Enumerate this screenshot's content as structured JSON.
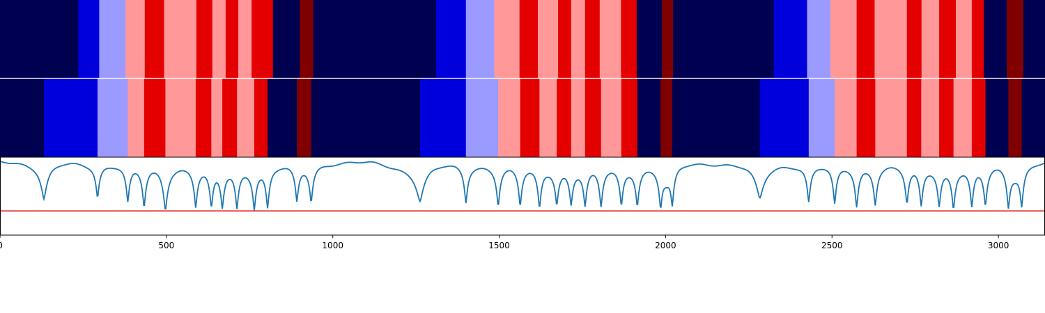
{
  "chart_data": {
    "type": "heatmap",
    "title": "",
    "xlabel": "",
    "ylabel": "",
    "xlim": [
      0,
      3140
    ],
    "grid": false,
    "legend": "none",
    "x_ticks": [
      0,
      500,
      1000,
      1500,
      2000,
      2500,
      3000
    ],
    "x_tick_labels": [
      "0",
      "500",
      "1000",
      "1500",
      "2000",
      "2500",
      "3000"
    ],
    "colors": {
      "c0": "#000050",
      "c1": "#0000dc",
      "c2": "#9a9aff",
      "c3": "#ff9999",
      "c4": "#e50000",
      "c5": "#800000",
      "line": "#1f77b4",
      "threshold": "#e00000",
      "separator": "#ffffff",
      "axis": "#000000"
    },
    "rows": [
      {
        "name": "",
        "segments": [
          {
            "start": 0,
            "end": 235,
            "class": 0
          },
          {
            "start": 235,
            "end": 298,
            "class": 1
          },
          {
            "start": 298,
            "end": 377,
            "class": 2
          },
          {
            "start": 377,
            "end": 435,
            "class": 3
          },
          {
            "start": 435,
            "end": 493,
            "class": 4
          },
          {
            "start": 493,
            "end": 590,
            "class": 3
          },
          {
            "start": 590,
            "end": 638,
            "class": 4
          },
          {
            "start": 638,
            "end": 678,
            "class": 3
          },
          {
            "start": 678,
            "end": 716,
            "class": 4
          },
          {
            "start": 716,
            "end": 756,
            "class": 3
          },
          {
            "start": 756,
            "end": 820,
            "class": 4
          },
          {
            "start": 820,
            "end": 901,
            "class": 0
          },
          {
            "start": 901,
            "end": 941,
            "class": 5
          },
          {
            "start": 941,
            "end": 1310,
            "class": 0
          },
          {
            "start": 1310,
            "end": 1400,
            "class": 1
          },
          {
            "start": 1400,
            "end": 1485,
            "class": 2
          },
          {
            "start": 1485,
            "end": 1561,
            "class": 3
          },
          {
            "start": 1561,
            "end": 1616,
            "class": 4
          },
          {
            "start": 1616,
            "end": 1677,
            "class": 3
          },
          {
            "start": 1677,
            "end": 1716,
            "class": 4
          },
          {
            "start": 1716,
            "end": 1758,
            "class": 3
          },
          {
            "start": 1758,
            "end": 1802,
            "class": 4
          },
          {
            "start": 1802,
            "end": 1866,
            "class": 3
          },
          {
            "start": 1866,
            "end": 1913,
            "class": 4
          },
          {
            "start": 1913,
            "end": 1989,
            "class": 0
          },
          {
            "start": 1989,
            "end": 2022,
            "class": 5
          },
          {
            "start": 2022,
            "end": 2325,
            "class": 0
          },
          {
            "start": 2325,
            "end": 2425,
            "class": 1
          },
          {
            "start": 2425,
            "end": 2495,
            "class": 2
          },
          {
            "start": 2495,
            "end": 2574,
            "class": 3
          },
          {
            "start": 2574,
            "end": 2628,
            "class": 4
          },
          {
            "start": 2628,
            "end": 2725,
            "class": 3
          },
          {
            "start": 2725,
            "end": 2769,
            "class": 4
          },
          {
            "start": 2769,
            "end": 2822,
            "class": 3
          },
          {
            "start": 2822,
            "end": 2872,
            "class": 4
          },
          {
            "start": 2872,
            "end": 2920,
            "class": 3
          },
          {
            "start": 2920,
            "end": 2956,
            "class": 4
          },
          {
            "start": 2956,
            "end": 3025,
            "class": 0
          },
          {
            "start": 3025,
            "end": 3075,
            "class": 5
          },
          {
            "start": 3075,
            "end": 3140,
            "class": 0
          }
        ]
      },
      {
        "name": "",
        "segments": [
          {
            "start": 0,
            "end": 132,
            "class": 0
          },
          {
            "start": 132,
            "end": 293,
            "class": 1
          },
          {
            "start": 293,
            "end": 384,
            "class": 2
          },
          {
            "start": 384,
            "end": 433,
            "class": 3
          },
          {
            "start": 433,
            "end": 497,
            "class": 4
          },
          {
            "start": 497,
            "end": 588,
            "class": 3
          },
          {
            "start": 588,
            "end": 635,
            "class": 4
          },
          {
            "start": 635,
            "end": 668,
            "class": 3
          },
          {
            "start": 668,
            "end": 712,
            "class": 4
          },
          {
            "start": 712,
            "end": 764,
            "class": 3
          },
          {
            "start": 764,
            "end": 804,
            "class": 4
          },
          {
            "start": 804,
            "end": 892,
            "class": 0
          },
          {
            "start": 892,
            "end": 935,
            "class": 5
          },
          {
            "start": 935,
            "end": 1262,
            "class": 0
          },
          {
            "start": 1262,
            "end": 1400,
            "class": 1
          },
          {
            "start": 1400,
            "end": 1497,
            "class": 2
          },
          {
            "start": 1497,
            "end": 1563,
            "class": 3
          },
          {
            "start": 1563,
            "end": 1621,
            "class": 4
          },
          {
            "start": 1621,
            "end": 1673,
            "class": 3
          },
          {
            "start": 1673,
            "end": 1716,
            "class": 4
          },
          {
            "start": 1716,
            "end": 1758,
            "class": 3
          },
          {
            "start": 1758,
            "end": 1806,
            "class": 4
          },
          {
            "start": 1806,
            "end": 1867,
            "class": 3
          },
          {
            "start": 1867,
            "end": 1915,
            "class": 4
          },
          {
            "start": 1915,
            "end": 1985,
            "class": 0
          },
          {
            "start": 1985,
            "end": 2020,
            "class": 5
          },
          {
            "start": 2020,
            "end": 2283,
            "class": 0
          },
          {
            "start": 2283,
            "end": 2430,
            "class": 1
          },
          {
            "start": 2430,
            "end": 2508,
            "class": 2
          },
          {
            "start": 2508,
            "end": 2574,
            "class": 3
          },
          {
            "start": 2574,
            "end": 2630,
            "class": 4
          },
          {
            "start": 2630,
            "end": 2725,
            "class": 3
          },
          {
            "start": 2725,
            "end": 2768,
            "class": 4
          },
          {
            "start": 2768,
            "end": 2822,
            "class": 3
          },
          {
            "start": 2822,
            "end": 2865,
            "class": 4
          },
          {
            "start": 2865,
            "end": 2920,
            "class": 3
          },
          {
            "start": 2920,
            "end": 2961,
            "class": 4
          },
          {
            "start": 2961,
            "end": 3030,
            "class": 0
          },
          {
            "start": 3030,
            "end": 3070,
            "class": 5
          },
          {
            "start": 3070,
            "end": 3140,
            "class": 0
          }
        ]
      }
    ],
    "line_series": {
      "name": "",
      "ylim": [
        0,
        1
      ],
      "baseline": 0.99,
      "threshold": 0.31,
      "dips": [
        {
          "x": 132,
          "y": 0.48,
          "w": 14
        },
        {
          "x": 293,
          "y": 0.55,
          "w": 7
        },
        {
          "x": 384,
          "y": 0.5,
          "w": 7
        },
        {
          "x": 433,
          "y": 0.46,
          "w": 7
        },
        {
          "x": 497,
          "y": 0.42,
          "w": 9
        },
        {
          "x": 588,
          "y": 0.48,
          "w": 7
        },
        {
          "x": 635,
          "y": 0.48,
          "w": 7
        },
        {
          "x": 668,
          "y": 0.5,
          "w": 7
        },
        {
          "x": 712,
          "y": 0.47,
          "w": 7
        },
        {
          "x": 764,
          "y": 0.48,
          "w": 7
        },
        {
          "x": 804,
          "y": 0.46,
          "w": 7
        },
        {
          "x": 892,
          "y": 0.51,
          "w": 7
        },
        {
          "x": 935,
          "y": 0.51,
          "w": 7
        },
        {
          "x": 1262,
          "y": 0.5,
          "w": 18
        },
        {
          "x": 1400,
          "y": 0.5,
          "w": 7
        },
        {
          "x": 1497,
          "y": 0.47,
          "w": 7
        },
        {
          "x": 1563,
          "y": 0.47,
          "w": 7
        },
        {
          "x": 1621,
          "y": 0.45,
          "w": 7
        },
        {
          "x": 1673,
          "y": 0.53,
          "w": 7
        },
        {
          "x": 1716,
          "y": 0.54,
          "w": 7
        },
        {
          "x": 1758,
          "y": 0.5,
          "w": 7
        },
        {
          "x": 1806,
          "y": 0.48,
          "w": 7
        },
        {
          "x": 1867,
          "y": 0.49,
          "w": 7
        },
        {
          "x": 1915,
          "y": 0.5,
          "w": 7
        },
        {
          "x": 1985,
          "y": 0.47,
          "w": 7
        },
        {
          "x": 2020,
          "y": 0.47,
          "w": 7
        },
        {
          "x": 2283,
          "y": 0.5,
          "w": 18
        },
        {
          "x": 2430,
          "y": 0.5,
          "w": 7
        },
        {
          "x": 2508,
          "y": 0.47,
          "w": 7
        },
        {
          "x": 2574,
          "y": 0.46,
          "w": 7
        },
        {
          "x": 2630,
          "y": 0.5,
          "w": 7
        },
        {
          "x": 2725,
          "y": 0.5,
          "w": 7
        },
        {
          "x": 2768,
          "y": 0.48,
          "w": 7
        },
        {
          "x": 2822,
          "y": 0.5,
          "w": 7
        },
        {
          "x": 2865,
          "y": 0.47,
          "w": 7
        },
        {
          "x": 2920,
          "y": 0.47,
          "w": 7
        },
        {
          "x": 2961,
          "y": 0.48,
          "w": 7
        },
        {
          "x": 3030,
          "y": 0.46,
          "w": 7
        },
        {
          "x": 3070,
          "y": 0.46,
          "w": 7
        }
      ],
      "humps": [
        {
          "x": 1200,
          "y": 0.04,
          "w": 60
        },
        {
          "x": 2003,
          "y": 0.1,
          "w": 12
        },
        {
          "x": 3050,
          "y": 0.06,
          "w": 14
        }
      ]
    }
  }
}
